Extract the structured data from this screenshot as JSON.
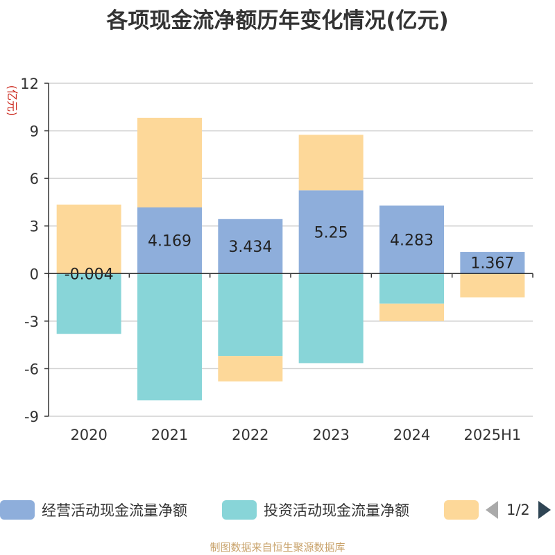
{
  "chart_data": {
    "type": "bar",
    "stacked": true,
    "title": "各项现金流净额历年变化情况(亿元)",
    "ylabel": "(亿元)",
    "categories": [
      "2020",
      "2021",
      "2022",
      "2023",
      "2024",
      "2025H1"
    ],
    "ylim": [
      -9,
      12
    ],
    "yticks": [
      12,
      9,
      6,
      3,
      0,
      -3,
      -6,
      -9
    ],
    "grid": true,
    "legend_position": "bottom",
    "series": [
      {
        "name": "经营活动现金流量净额",
        "color": "#8eaedb",
        "values": [
          -0.004,
          4.169,
          3.434,
          5.25,
          4.283,
          1.367
        ],
        "labels": [
          "-0.004",
          "4.169",
          "3.434",
          "5.25",
          "4.283",
          "1.367"
        ]
      },
      {
        "name": "投资活动现金流量净额",
        "color": "#88d5d8",
        "values": [
          -3.8,
          -8.0,
          -5.2,
          -5.65,
          -1.9,
          0
        ]
      },
      {
        "name": "",
        "color": "#fdd899",
        "values": [
          4.35,
          5.65,
          -1.6,
          3.5,
          -1.1,
          -1.5
        ]
      }
    ]
  },
  "legend": {
    "items": [
      "经营活动现金流量净额",
      "投资活动现金流量净额",
      ""
    ],
    "page": "1/2"
  },
  "source": "制图数据来自恒生聚源数据库"
}
